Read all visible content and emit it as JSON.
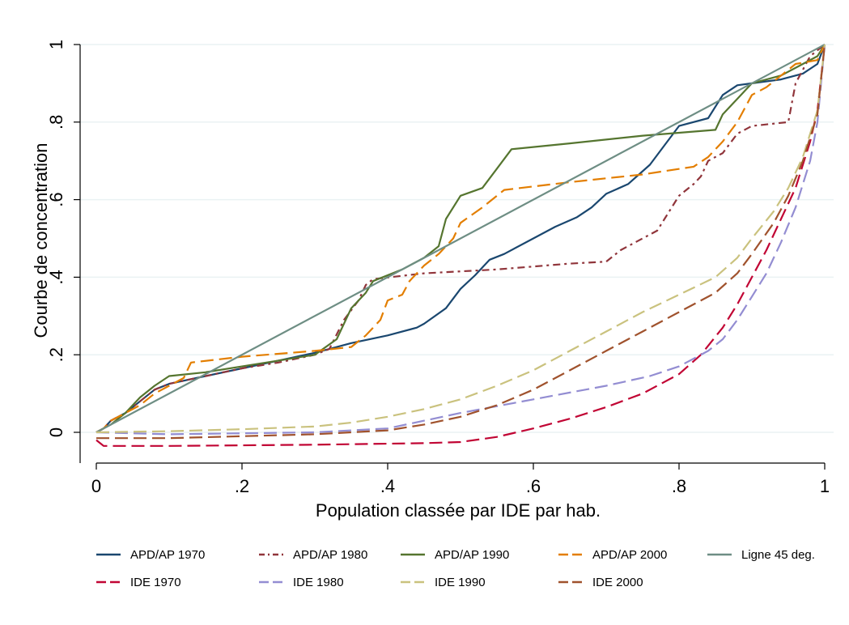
{
  "chart_data": {
    "type": "line",
    "title": "",
    "xlabel": "Population classée par IDE par hab.",
    "ylabel": "Courbe de concentration",
    "xlim": [
      0,
      1
    ],
    "ylim": [
      -0.08,
      1.0
    ],
    "x_ticks": [
      0,
      0.2,
      0.4,
      0.6,
      0.8,
      1
    ],
    "x_tick_labels": [
      "0",
      ".2",
      ".4",
      ".6",
      ".8",
      "1"
    ],
    "y_ticks": [
      0,
      0.2,
      0.4,
      0.6,
      0.8,
      1
    ],
    "y_tick_labels": [
      "0",
      ".2",
      ".4",
      ".6",
      ".8",
      "1"
    ],
    "grid": "horizontal",
    "legend_position": "bottom",
    "series": [
      {
        "name": "APD/AP 1970",
        "color": "#1a476f",
        "dash": "solid",
        "points": [
          [
            0,
            0.0
          ],
          [
            0.01,
            0.01
          ],
          [
            0.02,
            0.03
          ],
          [
            0.04,
            0.05
          ],
          [
            0.06,
            0.08
          ],
          [
            0.08,
            0.11
          ],
          [
            0.1,
            0.125
          ],
          [
            0.15,
            0.145
          ],
          [
            0.2,
            0.165
          ],
          [
            0.25,
            0.185
          ],
          [
            0.3,
            0.205
          ],
          [
            0.35,
            0.23
          ],
          [
            0.4,
            0.25
          ],
          [
            0.44,
            0.27
          ],
          [
            0.45,
            0.28
          ],
          [
            0.48,
            0.32
          ],
          [
            0.5,
            0.37
          ],
          [
            0.52,
            0.405
          ],
          [
            0.54,
            0.445
          ],
          [
            0.56,
            0.46
          ],
          [
            0.6,
            0.5
          ],
          [
            0.63,
            0.53
          ],
          [
            0.66,
            0.555
          ],
          [
            0.68,
            0.58
          ],
          [
            0.7,
            0.615
          ],
          [
            0.73,
            0.64
          ],
          [
            0.76,
            0.69
          ],
          [
            0.78,
            0.74
          ],
          [
            0.8,
            0.79
          ],
          [
            0.84,
            0.81
          ],
          [
            0.86,
            0.87
          ],
          [
            0.88,
            0.895
          ],
          [
            0.9,
            0.9
          ],
          [
            0.94,
            0.91
          ],
          [
            0.97,
            0.925
          ],
          [
            0.99,
            0.95
          ],
          [
            1,
            1
          ]
        ]
      },
      {
        "name": "APD/AP 1980",
        "color": "#90353b",
        "dash": "dashdot",
        "points": [
          [
            0,
            0.0
          ],
          [
            0.01,
            0.01
          ],
          [
            0.02,
            0.03
          ],
          [
            0.04,
            0.05
          ],
          [
            0.06,
            0.08
          ],
          [
            0.08,
            0.11
          ],
          [
            0.1,
            0.125
          ],
          [
            0.15,
            0.145
          ],
          [
            0.2,
            0.165
          ],
          [
            0.25,
            0.18
          ],
          [
            0.3,
            0.2
          ],
          [
            0.32,
            0.215
          ],
          [
            0.34,
            0.29
          ],
          [
            0.36,
            0.34
          ],
          [
            0.37,
            0.38
          ],
          [
            0.38,
            0.395
          ],
          [
            0.45,
            0.41
          ],
          [
            0.55,
            0.42
          ],
          [
            0.65,
            0.435
          ],
          [
            0.7,
            0.44
          ],
          [
            0.72,
            0.47
          ],
          [
            0.75,
            0.5
          ],
          [
            0.77,
            0.52
          ],
          [
            0.78,
            0.55
          ],
          [
            0.8,
            0.61
          ],
          [
            0.82,
            0.64
          ],
          [
            0.83,
            0.66
          ],
          [
            0.84,
            0.7
          ],
          [
            0.86,
            0.72
          ],
          [
            0.88,
            0.77
          ],
          [
            0.9,
            0.79
          ],
          [
            0.95,
            0.8
          ],
          [
            0.96,
            0.9
          ],
          [
            0.98,
            0.97
          ],
          [
            1,
            1
          ]
        ]
      },
      {
        "name": "APD/AP 1990",
        "color": "#55752f",
        "dash": "solid",
        "points": [
          [
            0,
            0.0
          ],
          [
            0.01,
            0.01
          ],
          [
            0.02,
            0.02
          ],
          [
            0.04,
            0.05
          ],
          [
            0.06,
            0.09
          ],
          [
            0.08,
            0.12
          ],
          [
            0.1,
            0.145
          ],
          [
            0.15,
            0.155
          ],
          [
            0.2,
            0.17
          ],
          [
            0.25,
            0.185
          ],
          [
            0.3,
            0.2
          ],
          [
            0.33,
            0.24
          ],
          [
            0.35,
            0.32
          ],
          [
            0.37,
            0.36
          ],
          [
            0.38,
            0.39
          ],
          [
            0.42,
            0.42
          ],
          [
            0.45,
            0.45
          ],
          [
            0.47,
            0.48
          ],
          [
            0.48,
            0.55
          ],
          [
            0.5,
            0.61
          ],
          [
            0.53,
            0.63
          ],
          [
            0.55,
            0.68
          ],
          [
            0.57,
            0.73
          ],
          [
            0.65,
            0.745
          ],
          [
            0.75,
            0.765
          ],
          [
            0.85,
            0.78
          ],
          [
            0.86,
            0.82
          ],
          [
            0.88,
            0.86
          ],
          [
            0.9,
            0.9
          ],
          [
            0.94,
            0.92
          ],
          [
            0.97,
            0.95
          ],
          [
            0.99,
            0.97
          ],
          [
            1,
            1
          ]
        ]
      },
      {
        "name": "APD/AP 2000",
        "color": "#e37e00",
        "dash": "longdash",
        "points": [
          [
            0,
            0.0
          ],
          [
            0.01,
            0.01
          ],
          [
            0.02,
            0.03
          ],
          [
            0.04,
            0.05
          ],
          [
            0.06,
            0.07
          ],
          [
            0.08,
            0.1
          ],
          [
            0.1,
            0.12
          ],
          [
            0.12,
            0.14
          ],
          [
            0.13,
            0.18
          ],
          [
            0.2,
            0.195
          ],
          [
            0.3,
            0.21
          ],
          [
            0.35,
            0.22
          ],
          [
            0.37,
            0.25
          ],
          [
            0.39,
            0.29
          ],
          [
            0.4,
            0.34
          ],
          [
            0.42,
            0.355
          ],
          [
            0.43,
            0.39
          ],
          [
            0.45,
            0.43
          ],
          [
            0.47,
            0.46
          ],
          [
            0.49,
            0.5
          ],
          [
            0.5,
            0.54
          ],
          [
            0.53,
            0.58
          ],
          [
            0.56,
            0.625
          ],
          [
            0.65,
            0.645
          ],
          [
            0.75,
            0.665
          ],
          [
            0.82,
            0.685
          ],
          [
            0.84,
            0.71
          ],
          [
            0.86,
            0.75
          ],
          [
            0.88,
            0.8
          ],
          [
            0.9,
            0.87
          ],
          [
            0.92,
            0.89
          ],
          [
            0.96,
            0.95
          ],
          [
            0.99,
            0.96
          ],
          [
            1,
            1
          ]
        ]
      },
      {
        "name": "Ligne 45 deg.",
        "color": "#6e8e84",
        "dash": "solid",
        "points": [
          [
            0,
            0
          ],
          [
            1,
            1
          ]
        ]
      },
      {
        "name": "IDE 1970",
        "color": "#c10534",
        "dash": "longdash",
        "points": [
          [
            0,
            -0.02
          ],
          [
            0.01,
            -0.035
          ],
          [
            0.1,
            -0.035
          ],
          [
            0.3,
            -0.032
          ],
          [
            0.45,
            -0.028
          ],
          [
            0.5,
            -0.025
          ],
          [
            0.55,
            -0.012
          ],
          [
            0.6,
            0.01
          ],
          [
            0.65,
            0.035
          ],
          [
            0.7,
            0.065
          ],
          [
            0.75,
            0.1
          ],
          [
            0.8,
            0.15
          ],
          [
            0.83,
            0.2
          ],
          [
            0.86,
            0.27
          ],
          [
            0.88,
            0.33
          ],
          [
            0.9,
            0.4
          ],
          [
            0.92,
            0.47
          ],
          [
            0.94,
            0.55
          ],
          [
            0.96,
            0.63
          ],
          [
            0.98,
            0.75
          ],
          [
            0.99,
            0.83
          ],
          [
            1,
            1
          ]
        ]
      },
      {
        "name": "IDE 1980",
        "color": "#938dd2",
        "dash": "longdash",
        "points": [
          [
            0,
            0
          ],
          [
            0.1,
            -0.005
          ],
          [
            0.3,
            0.0
          ],
          [
            0.4,
            0.01
          ],
          [
            0.5,
            0.05
          ],
          [
            0.6,
            0.085
          ],
          [
            0.7,
            0.12
          ],
          [
            0.76,
            0.145
          ],
          [
            0.8,
            0.17
          ],
          [
            0.84,
            0.21
          ],
          [
            0.86,
            0.24
          ],
          [
            0.88,
            0.29
          ],
          [
            0.9,
            0.35
          ],
          [
            0.92,
            0.41
          ],
          [
            0.94,
            0.49
          ],
          [
            0.96,
            0.58
          ],
          [
            0.98,
            0.7
          ],
          [
            0.99,
            0.8
          ],
          [
            1,
            1
          ]
        ]
      },
      {
        "name": "IDE 1990",
        "color": "#cac27e",
        "dash": "longdash",
        "points": [
          [
            0,
            0
          ],
          [
            0.1,
            0.003
          ],
          [
            0.2,
            0.008
          ],
          [
            0.3,
            0.015
          ],
          [
            0.35,
            0.025
          ],
          [
            0.4,
            0.04
          ],
          [
            0.45,
            0.06
          ],
          [
            0.5,
            0.085
          ],
          [
            0.55,
            0.12
          ],
          [
            0.6,
            0.16
          ],
          [
            0.65,
            0.21
          ],
          [
            0.7,
            0.26
          ],
          [
            0.75,
            0.31
          ],
          [
            0.8,
            0.355
          ],
          [
            0.85,
            0.4
          ],
          [
            0.88,
            0.45
          ],
          [
            0.9,
            0.5
          ],
          [
            0.93,
            0.57
          ],
          [
            0.95,
            0.63
          ],
          [
            0.97,
            0.71
          ],
          [
            0.99,
            0.83
          ],
          [
            1,
            1
          ]
        ]
      },
      {
        "name": "IDE 2000",
        "color": "#a0522d",
        "dash": "longdash",
        "points": [
          [
            0,
            -0.015
          ],
          [
            0.1,
            -0.015
          ],
          [
            0.2,
            -0.01
          ],
          [
            0.3,
            -0.005
          ],
          [
            0.4,
            0.005
          ],
          [
            0.45,
            0.02
          ],
          [
            0.5,
            0.04
          ],
          [
            0.55,
            0.07
          ],
          [
            0.6,
            0.11
          ],
          [
            0.65,
            0.16
          ],
          [
            0.7,
            0.21
          ],
          [
            0.75,
            0.26
          ],
          [
            0.8,
            0.31
          ],
          [
            0.85,
            0.36
          ],
          [
            0.88,
            0.41
          ],
          [
            0.9,
            0.46
          ],
          [
            0.93,
            0.54
          ],
          [
            0.95,
            0.61
          ],
          [
            0.97,
            0.7
          ],
          [
            0.99,
            0.82
          ],
          [
            1,
            1
          ]
        ]
      }
    ]
  }
}
